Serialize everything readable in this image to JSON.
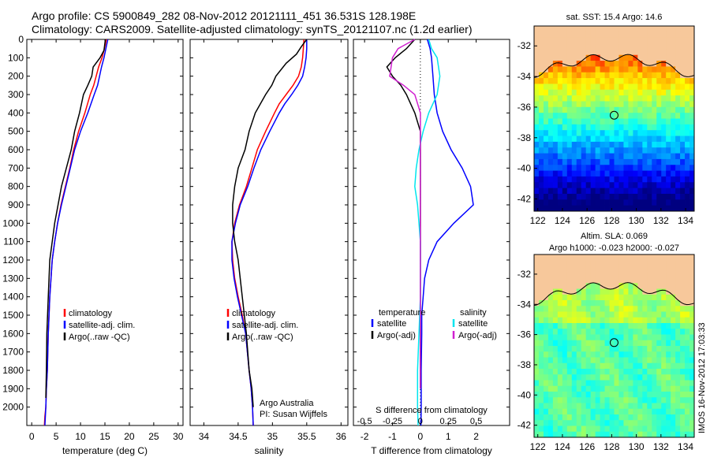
{
  "header": {
    "line1": "Argo profile: CS 5900849_282 08-Nov-2012 20121111_451 36.531S 128.198E",
    "line2": "Climatology: CARS2009. Satellite-adjusted climatology: synTS_20121107.nc (1.2d earlier)"
  },
  "timestamp": "IMOS 16-Nov-2012 17:03:33",
  "chart_data": [
    {
      "type": "line",
      "id": "temperature",
      "xlabel": "temperature (deg C)",
      "xlim": [
        -1,
        31
      ],
      "xticks": [
        0,
        5,
        10,
        15,
        20,
        25,
        30
      ],
      "ylim": [
        0,
        2100
      ],
      "yticks": [
        0,
        100,
        200,
        300,
        400,
        500,
        600,
        700,
        800,
        900,
        1000,
        1100,
        1200,
        1300,
        1400,
        1500,
        1600,
        1700,
        1800,
        1900,
        2000
      ],
      "legend": [
        "climatology",
        "satellite-adj. clim.",
        "Argo(..raw -QC)"
      ],
      "series": [
        {
          "name": "climatology",
          "color": "#ff0000",
          "x": [
            15.3,
            14.9,
            14.4,
            13.7,
            13.2,
            12.7,
            12.0,
            10.9,
            9.6,
            8.6,
            7.8,
            6.9,
            6.0,
            5.3,
            4.7,
            4.2,
            3.7,
            3.4,
            3.2,
            3.0,
            2.9,
            2.7,
            2.6
          ],
          "y": [
            0,
            50,
            100,
            150,
            200,
            250,
            300,
            400,
            500,
            600,
            700,
            800,
            900,
            1000,
            1100,
            1200,
            1400,
            1600,
            1800,
            1900,
            2000,
            2050,
            2100
          ]
        },
        {
          "name": "satellite-adj. clim.",
          "color": "#0000ff",
          "x": [
            15.6,
            15.2,
            14.8,
            14.3,
            13.9,
            13.5,
            12.8,
            11.5,
            10.0,
            8.8,
            7.9,
            7.0,
            6.1,
            5.3,
            4.7,
            4.2,
            3.7,
            3.4,
            3.2,
            3.0,
            2.9,
            2.8,
            2.7
          ],
          "y": [
            0,
            50,
            100,
            150,
            200,
            250,
            300,
            400,
            500,
            600,
            700,
            800,
            900,
            1000,
            1100,
            1200,
            1400,
            1600,
            1800,
            1900,
            2000,
            2050,
            2100
          ]
        },
        {
          "name": "Argo(..raw -QC)",
          "color": "#000000",
          "x": [
            15.1,
            14.8,
            14.0,
            12.6,
            12.3,
            11.5,
            10.6,
            9.8,
            8.8,
            8.1,
            7.1,
            6.1,
            5.4,
            4.7,
            4.2,
            3.7,
            3.4,
            3.1,
            3.0,
            2.9
          ],
          "y": [
            0,
            60,
            100,
            150,
            200,
            250,
            300,
            400,
            500,
            600,
            700,
            800,
            900,
            1000,
            1100,
            1200,
            1400,
            1600,
            1800,
            1950
          ]
        }
      ]
    },
    {
      "type": "line",
      "id": "salinity",
      "xlabel": "salinity",
      "xlim": [
        33.8,
        36.1
      ],
      "xticks": [
        34,
        34.5,
        35,
        35.5,
        36
      ],
      "ylim": [
        0,
        2100
      ],
      "legend": [
        "climatology",
        "satellite-adj. clim.",
        "Argo(..raw -QC)"
      ],
      "annotations": [
        "Argo Australia",
        "PI: Susan Wijffels"
      ],
      "series": [
        {
          "name": "climatology",
          "color": "#ff0000",
          "x": [
            35.46,
            35.45,
            35.44,
            35.42,
            35.38,
            35.3,
            35.2,
            35.1,
            35.03,
            34.9,
            34.78,
            34.7,
            34.62,
            34.52,
            34.45,
            34.41,
            34.42,
            34.45,
            34.5,
            34.56,
            34.61,
            34.66,
            34.69,
            34.71,
            34.72
          ],
          "y": [
            0,
            50,
            100,
            150,
            200,
            250,
            300,
            350,
            400,
            500,
            600,
            700,
            800,
            900,
            1000,
            1100,
            1200,
            1300,
            1400,
            1500,
            1600,
            1800,
            1900,
            2000,
            2100
          ]
        },
        {
          "name": "satellite-adj. clim.",
          "color": "#0000ff",
          "x": [
            35.5,
            35.5,
            35.49,
            35.47,
            35.44,
            35.37,
            35.28,
            35.18,
            35.1,
            34.96,
            34.83,
            34.73,
            34.64,
            34.53,
            34.46,
            34.41,
            34.41,
            34.44,
            34.49,
            34.55,
            34.61,
            34.66,
            34.69,
            34.71,
            34.72
          ],
          "y": [
            0,
            50,
            100,
            150,
            200,
            250,
            300,
            350,
            400,
            500,
            600,
            700,
            800,
            900,
            1000,
            1100,
            1200,
            1300,
            1400,
            1500,
            1600,
            1800,
            1900,
            2000,
            2100
          ]
        },
        {
          "name": "Argo(..raw -QC)",
          "color": "#000000",
          "x": [
            35.5,
            35.42,
            35.35,
            35.2,
            35.05,
            34.99,
            34.9,
            34.75,
            34.66,
            34.6,
            34.5,
            34.45,
            34.42,
            34.42,
            34.45,
            34.5,
            34.56,
            34.62,
            34.66,
            34.7,
            34.72
          ],
          "y": [
            0,
            40,
            80,
            130,
            200,
            250,
            300,
            400,
            500,
            600,
            700,
            800,
            900,
            1000,
            1100,
            1200,
            1400,
            1600,
            1800,
            1900,
            2000
          ]
        }
      ]
    },
    {
      "type": "line",
      "id": "difference",
      "xlabel": "T difference from climatology",
      "xlabel_top": "S difference from climatology",
      "xlim": [
        -2.4,
        3.2
      ],
      "xticks": [
        -2,
        -1,
        0,
        1,
        2
      ],
      "xticks_top": [
        -0.5,
        -0.25,
        0,
        0.25,
        0.5
      ],
      "ylim": [
        0,
        2100
      ],
      "legend_temperature": {
        "title": "temperature",
        "items": [
          "satellite",
          "Argo(-adj)"
        ]
      },
      "legend_salinity": {
        "title": "salinity",
        "items": [
          "satellite",
          "Argo(-adj)"
        ]
      },
      "series": [
        {
          "name": "temperature satellite",
          "color": "#0000ff",
          "x": [
            0.25,
            0.35,
            0.4,
            0.45,
            0.5,
            0.6,
            0.8,
            1.1,
            1.5,
            1.8,
            1.9,
            1.2,
            0.6,
            0.3,
            0.15,
            0.1,
            0.05,
            0.05,
            0.03,
            0.03,
            0.02
          ],
          "y": [
            0,
            50,
            100,
            200,
            300,
            400,
            500,
            600,
            700,
            800,
            900,
            1000,
            1100,
            1200,
            1300,
            1400,
            1500,
            1600,
            1800,
            2000,
            2100
          ]
        },
        {
          "name": "temperature Argo(-adj)",
          "color": "#000000",
          "x": [
            -0.2,
            -0.5,
            -0.9,
            -1.2,
            -1.0,
            -0.7,
            -0.5,
            -0.2,
            0.0,
            0.0,
            0.0,
            0.0,
            0.0,
            0.0,
            0.0,
            0.0
          ],
          "y": [
            0,
            50,
            100,
            150,
            200,
            250,
            300,
            400,
            500,
            700,
            900,
            1100,
            1300,
            1500,
            1700,
            1900
          ]
        },
        {
          "name": "salinity satellite",
          "color": "#00e5ee",
          "x": [
            0.3,
            0.4,
            0.6,
            0.7,
            0.6,
            0.3,
            0.1,
            -0.05,
            -0.15,
            -0.2,
            -0.1,
            -0.05,
            0.0,
            0.0,
            0.0,
            -0.05,
            -0.1,
            -0.1,
            -0.08
          ],
          "y": [
            0,
            50,
            100,
            200,
            300,
            400,
            500,
            600,
            700,
            800,
            900,
            1000,
            1100,
            1200,
            1400,
            1600,
            1800,
            2000,
            2100
          ]
        },
        {
          "name": "salinity Argo(-adj)",
          "color": "#d020d0",
          "x": [
            -0.2,
            -0.8,
            -1.0,
            -1.1,
            -0.6,
            -0.2,
            0.0,
            0.0,
            0.0,
            0.0,
            0.0,
            0.0,
            0.0
          ],
          "y": [
            0,
            50,
            100,
            200,
            250,
            300,
            400,
            600,
            800,
            1000,
            1300,
            1600,
            1900
          ]
        }
      ]
    },
    {
      "type": "heatmap",
      "id": "sst-map",
      "title": "sat. SST: 15.4  Argo: 14.6",
      "xticks": [
        122,
        124,
        126,
        128,
        130,
        132,
        134
      ],
      "yticks": [
        -32,
        -34,
        -36,
        -38,
        -40,
        -42
      ],
      "xlim": [
        121.7,
        134.7
      ],
      "ylim": [
        -42.8,
        -30.7
      ],
      "marker": {
        "lon": 128.198,
        "lat": -36.531
      }
    },
    {
      "type": "heatmap",
      "id": "sla-map",
      "title": "Altim. SLA: 0.069",
      "subtitle": "Argo h1000: -0.023 h2000: -0.027",
      "xticks": [
        122,
        124,
        126,
        128,
        130,
        132,
        134
      ],
      "yticks": [
        -32,
        -34,
        -36,
        -38,
        -40,
        -42
      ],
      "xlim": [
        121.7,
        134.7
      ],
      "ylim": [
        -42.8,
        -30.7
      ],
      "marker": {
        "lon": 128.198,
        "lat": -36.531
      }
    }
  ]
}
